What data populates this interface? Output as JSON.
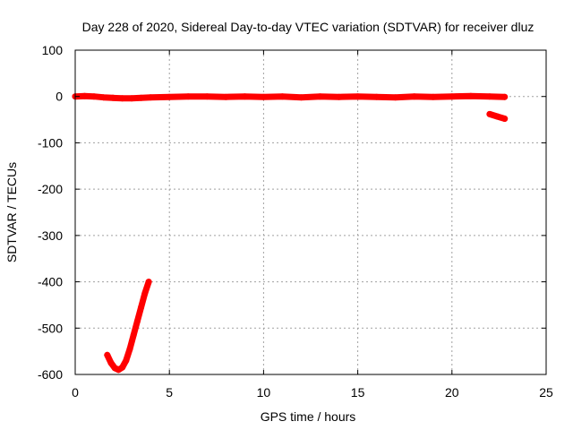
{
  "chart_data": {
    "type": "scatter",
    "title": "Day 228 of 2020, Sidereal Day-to-day VTEC variation (SDTVAR) for receiver dluz",
    "xlabel": "GPS time / hours",
    "ylabel": "SDTVAR / TECUs",
    "xlim": [
      0,
      25
    ],
    "ylim": [
      -600,
      100
    ],
    "xticks": [
      0,
      5,
      10,
      15,
      20,
      25
    ],
    "yticks": [
      100,
      0,
      -100,
      -200,
      -300,
      -400,
      -500,
      -600
    ],
    "grid": true,
    "legend": "none",
    "colors": {
      "series": "#ff0000",
      "grid": "#a0a0a0",
      "frame": "#000000"
    },
    "series": [
      {
        "segments": [
          {
            "x": [
              0.0,
              0.5,
              1.0,
              1.5,
              2.0,
              2.5,
              3.0,
              3.5,
              4.0,
              5.0,
              6.0,
              7.0,
              8.0,
              9.0,
              10.0,
              11.0,
              12.0,
              13.0,
              14.0,
              15.0,
              16.0,
              17.0,
              18.0,
              19.0,
              20.0,
              21.0,
              22.0,
              22.8
            ],
            "y": [
              0,
              1,
              0,
              -2,
              -3,
              -4,
              -4,
              -3,
              -2,
              -1,
              0,
              0,
              -1,
              0,
              -1,
              0,
              -2,
              0,
              -1,
              0,
              -1,
              -2,
              0,
              -1,
              0,
              1,
              0,
              -1
            ]
          },
          {
            "x": [
              22.0,
              22.4,
              22.8
            ],
            "y": [
              -38,
              -43,
              -48
            ]
          },
          {
            "x": [
              1.7,
              1.9,
              2.1,
              2.3,
              2.5,
              2.7,
              2.9,
              3.1,
              3.3,
              3.5,
              3.7,
              3.9
            ],
            "y": [
              -558,
              -575,
              -586,
              -590,
              -585,
              -570,
              -545,
              -515,
              -485,
              -455,
              -425,
              -400
            ]
          }
        ]
      }
    ]
  }
}
